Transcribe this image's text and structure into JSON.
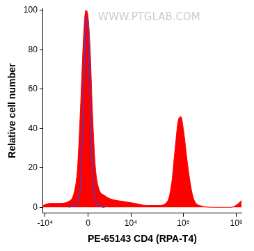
{
  "chart_data": {
    "type": "area",
    "watermark": "WWW.PTGLAB.COM",
    "x_label": "PE-65143 CD4 (RPA-T4)",
    "y_label": "Relative cell number",
    "x": [
      -11000,
      -8000,
      -5000,
      -3000,
      -2000,
      -1500,
      -1000,
      -600,
      -300,
      0,
      300,
      600,
      1000,
      1500,
      2500,
      4000,
      7000,
      12000,
      20000,
      35000,
      50000,
      60000,
      70000,
      80000,
      90000,
      100000,
      120000,
      150000,
      200000,
      400000,
      800000,
      1100000,
      1300000
    ],
    "series": [
      {
        "type": "area",
        "color": "#ff0000",
        "values": [
          1,
          2,
          2,
          3,
          8,
          20,
          55,
          88,
          100,
          97,
          80,
          50,
          22,
          10,
          6,
          4,
          3,
          2,
          1,
          1,
          3,
          12,
          30,
          44,
          46,
          40,
          22,
          6,
          1,
          0,
          0,
          2,
          4
        ]
      },
      {
        "type": "line",
        "color": "#4b3cc8",
        "values": [
          null,
          null,
          null,
          0,
          1,
          2,
          15,
          60,
          96,
          92,
          55,
          20,
          5,
          1,
          0,
          null,
          null,
          null,
          null,
          null,
          null,
          null,
          null,
          null,
          null,
          null,
          null,
          null,
          null,
          null,
          null,
          null,
          null
        ]
      }
    ],
    "xlim": [
      -11000,
      1250000
    ],
    "xticks": [
      {
        "value": -10000,
        "label": "-10⁴"
      },
      0,
      {
        "value": 10000,
        "label": "10⁴"
      },
      {
        "value": 100000,
        "label": "10⁵"
      },
      {
        "value": 1000000,
        "label": "10⁶"
      }
    ],
    "ylim": [
      -3,
      101
    ],
    "yticks": [
      0,
      20,
      40,
      60,
      80,
      100
    ],
    "grid": false
  }
}
